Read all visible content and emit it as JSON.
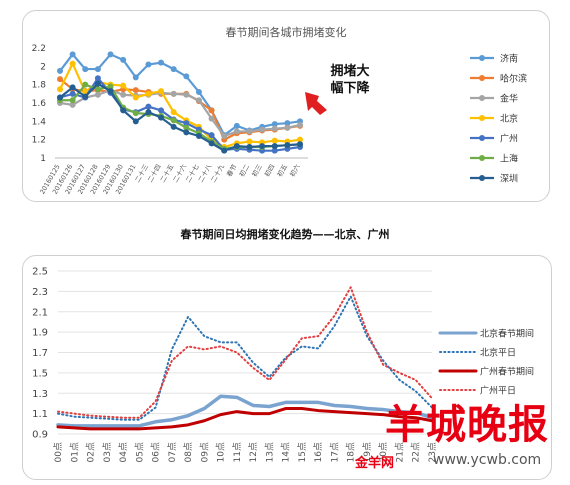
{
  "chart_data": [
    {
      "type": "line",
      "title": "春节期间各城市拥堵变化",
      "ylim": [
        1,
        2.2
      ],
      "yticks": [
        "2.2",
        "2",
        "1.8",
        "1.6",
        "1.4",
        "1.2",
        "1"
      ],
      "categories": [
        "20160125",
        "20160126",
        "20160127",
        "20160128",
        "20160129",
        "20160130",
        "20160131",
        "二十三",
        "二十四",
        "二十五",
        "二十六",
        "二十七",
        "二十八",
        "二十九",
        "春节",
        "初二",
        "初三",
        "初四",
        "初五",
        "初六"
      ],
      "annotation": "拥堵大\n幅下降",
      "grid": false,
      "legend_position": "right",
      "series": [
        {
          "name": "济南",
          "color": "#5b9bd5",
          "values": [
            1.95,
            2.13,
            1.97,
            1.97,
            2.13,
            2.07,
            1.88,
            2.02,
            2.04,
            1.97,
            1.89,
            1.72,
            1.52,
            1.25,
            1.35,
            1.3,
            1.34,
            1.37,
            1.38,
            1.4
          ]
        },
        {
          "name": "哈尔滨",
          "color": "#ed7d31",
          "values": [
            1.86,
            1.75,
            1.73,
            1.74,
            1.72,
            1.75,
            1.74,
            1.72,
            1.7,
            1.7,
            1.7,
            1.62,
            1.52,
            1.2,
            1.27,
            1.28,
            1.3,
            1.31,
            1.33,
            1.35
          ]
        },
        {
          "name": "金华",
          "color": "#a5a5a5",
          "values": [
            1.6,
            1.58,
            1.66,
            1.69,
            1.74,
            1.69,
            1.68,
            1.69,
            1.71,
            1.7,
            1.69,
            1.63,
            1.43,
            1.24,
            1.29,
            1.29,
            1.31,
            1.32,
            1.33,
            1.36
          ]
        },
        {
          "name": "北京",
          "color": "#ffc000",
          "values": [
            1.75,
            2.03,
            1.72,
            1.83,
            1.8,
            1.79,
            1.66,
            1.7,
            1.73,
            1.5,
            1.41,
            1.34,
            1.2,
            1.12,
            1.16,
            1.18,
            1.17,
            1.19,
            1.18,
            1.2
          ]
        },
        {
          "name": "广州",
          "color": "#4472c4",
          "values": [
            1.66,
            1.7,
            1.66,
            1.87,
            1.71,
            1.53,
            1.5,
            1.56,
            1.52,
            1.42,
            1.38,
            1.31,
            1.25,
            1.09,
            1.1,
            1.09,
            1.08,
            1.08,
            1.1,
            1.12
          ]
        },
        {
          "name": "上海",
          "color": "#70ad47",
          "values": [
            1.63,
            1.63,
            1.8,
            1.75,
            1.78,
            1.55,
            1.49,
            1.48,
            1.46,
            1.41,
            1.33,
            1.27,
            1.18,
            1.1,
            1.12,
            1.12,
            1.12,
            1.13,
            1.14,
            1.15
          ]
        },
        {
          "name": "深圳",
          "color": "#255e91",
          "values": [
            1.66,
            1.77,
            1.67,
            1.81,
            1.73,
            1.52,
            1.4,
            1.5,
            1.44,
            1.34,
            1.28,
            1.24,
            1.16,
            1.08,
            1.13,
            1.12,
            1.13,
            1.13,
            1.14,
            1.15
          ]
        }
      ]
    },
    {
      "type": "line",
      "title": "春节期间日均拥堵变化趋势——北京、广州",
      "ylim": [
        0.9,
        2.5
      ],
      "yticks": [
        "2.5",
        "2.3",
        "2.1",
        "1.9",
        "1.7",
        "1.5",
        "1.3",
        "1.1",
        "0.9"
      ],
      "categories": [
        "00点",
        "01点",
        "02点",
        "03点",
        "04点",
        "05点",
        "06点",
        "07点",
        "08点",
        "09点",
        "10点",
        "11点",
        "12点",
        "13点",
        "14点",
        "15点",
        "16点",
        "17点",
        "18点",
        "19点",
        "20点",
        "21点",
        "22点",
        "23点"
      ],
      "grid": true,
      "legend_position": "right",
      "series": [
        {
          "name": "北京春节期间",
          "color": "#7aa3d0",
          "style": "solid",
          "width": 3.5,
          "values": [
            0.99,
            0.98,
            0.98,
            0.98,
            0.98,
            0.98,
            1.02,
            1.04,
            1.08,
            1.15,
            1.27,
            1.26,
            1.18,
            1.17,
            1.21,
            1.21,
            1.21,
            1.18,
            1.17,
            1.15,
            1.14,
            1.12,
            1.11,
            1.06
          ]
        },
        {
          "name": "北京平日",
          "color": "#2e75b6",
          "style": "dotted",
          "width": 2,
          "values": [
            1.1,
            1.07,
            1.06,
            1.05,
            1.04,
            1.04,
            1.16,
            1.73,
            2.05,
            1.86,
            1.8,
            1.8,
            1.6,
            1.46,
            1.65,
            1.76,
            1.74,
            1.96,
            2.25,
            1.86,
            1.62,
            1.43,
            1.32,
            1.16
          ]
        },
        {
          "name": "广州春节期间",
          "color": "#c00000",
          "style": "solid",
          "width": 3,
          "values": [
            0.97,
            0.96,
            0.95,
            0.95,
            0.95,
            0.95,
            0.96,
            0.97,
            0.99,
            1.03,
            1.09,
            1.12,
            1.1,
            1.1,
            1.15,
            1.15,
            1.13,
            1.12,
            1.11,
            1.1,
            1.09,
            1.07,
            1.06,
            1.03
          ]
        },
        {
          "name": "广州平日",
          "color": "#e04040",
          "style": "dotted",
          "width": 2,
          "values": [
            1.12,
            1.1,
            1.08,
            1.07,
            1.06,
            1.06,
            1.22,
            1.62,
            1.76,
            1.73,
            1.76,
            1.7,
            1.55,
            1.43,
            1.63,
            1.84,
            1.86,
            2.06,
            2.34,
            1.9,
            1.58,
            1.5,
            1.43,
            1.25
          ]
        }
      ]
    }
  ],
  "watermark": {
    "title": "羊城晚报",
    "brand": "金羊网",
    "url": "www.ycwb.com"
  }
}
